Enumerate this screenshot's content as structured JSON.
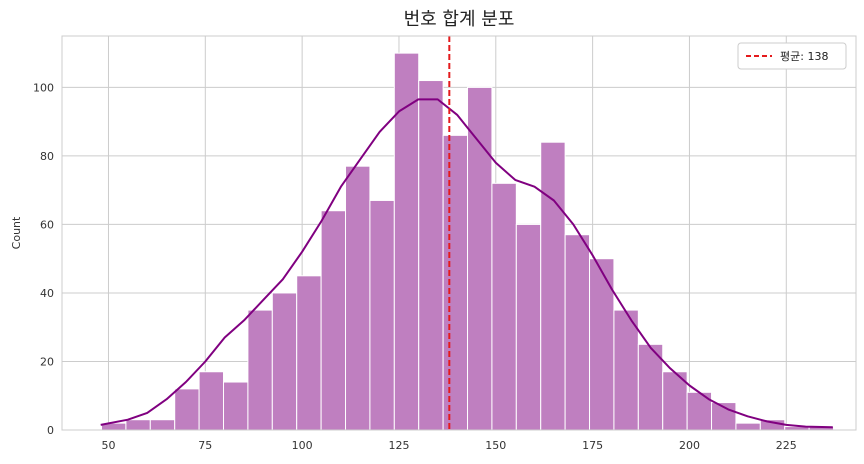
{
  "chart_data": {
    "type": "bar",
    "title": "번호 합계 분포",
    "xlabel": "",
    "ylabel": "Count",
    "xlim": [
      38,
      243
    ],
    "ylim": [
      0,
      115
    ],
    "xticks": [
      50,
      75,
      100,
      125,
      150,
      175,
      200,
      225
    ],
    "yticks": [
      0,
      20,
      40,
      60,
      80,
      100
    ],
    "grid": true,
    "bin_width": 6.3,
    "bins": [
      {
        "left": 48.2,
        "value": 2
      },
      {
        "left": 54.5,
        "value": 3
      },
      {
        "left": 60.8,
        "value": 3
      },
      {
        "left": 67.1,
        "value": 12
      },
      {
        "left": 73.4,
        "value": 17
      },
      {
        "left": 79.7,
        "value": 14
      },
      {
        "left": 86.0,
        "value": 35
      },
      {
        "left": 92.3,
        "value": 40
      },
      {
        "left": 98.6,
        "value": 45
      },
      {
        "left": 104.9,
        "value": 64
      },
      {
        "left": 111.2,
        "value": 77
      },
      {
        "left": 117.5,
        "value": 67
      },
      {
        "left": 123.8,
        "value": 110
      },
      {
        "left": 130.1,
        "value": 102
      },
      {
        "left": 136.4,
        "value": 86
      },
      {
        "left": 142.7,
        "value": 100
      },
      {
        "left": 149.0,
        "value": 72
      },
      {
        "left": 155.3,
        "value": 60
      },
      {
        "left": 161.6,
        "value": 84
      },
      {
        "left": 167.9,
        "value": 57
      },
      {
        "left": 174.2,
        "value": 50
      },
      {
        "left": 180.5,
        "value": 35
      },
      {
        "left": 186.8,
        "value": 25
      },
      {
        "left": 193.1,
        "value": 17
      },
      {
        "left": 199.4,
        "value": 11
      },
      {
        "left": 205.7,
        "value": 8
      },
      {
        "left": 212.0,
        "value": 2
      },
      {
        "left": 218.3,
        "value": 3
      },
      {
        "left": 224.6,
        "value": 1
      },
      {
        "left": 230.9,
        "value": 1
      }
    ],
    "kde": [
      [
        48,
        1.5
      ],
      [
        55,
        3
      ],
      [
        60,
        5
      ],
      [
        65,
        9
      ],
      [
        70,
        14
      ],
      [
        75,
        20
      ],
      [
        80,
        27
      ],
      [
        85,
        32
      ],
      [
        90,
        38
      ],
      [
        95,
        44
      ],
      [
        100,
        52
      ],
      [
        105,
        61
      ],
      [
        110,
        71
      ],
      [
        115,
        79
      ],
      [
        120,
        87
      ],
      [
        125,
        93
      ],
      [
        130,
        96.5
      ],
      [
        135,
        96.5
      ],
      [
        140,
        92
      ],
      [
        145,
        85
      ],
      [
        150,
        78
      ],
      [
        155,
        73
      ],
      [
        160,
        71
      ],
      [
        165,
        67
      ],
      [
        170,
        60
      ],
      [
        175,
        51
      ],
      [
        180,
        41
      ],
      [
        185,
        32
      ],
      [
        190,
        24
      ],
      [
        195,
        18
      ],
      [
        200,
        13
      ],
      [
        205,
        9
      ],
      [
        210,
        6
      ],
      [
        215,
        4
      ],
      [
        220,
        2.5
      ],
      [
        225,
        1.5
      ],
      [
        230,
        1
      ],
      [
        237,
        0.8
      ]
    ],
    "mean": 138,
    "legend": {
      "placement": "top-right",
      "entries": [
        {
          "label": "평균: 138"
        }
      ]
    },
    "colors": {
      "bar_fill": "#bf7fc0",
      "bar_edge": "#ffffff",
      "kde": "#800080",
      "mean_line": "#e41a1c",
      "grid": "#cccccc",
      "axes_edge": "#cccccc"
    }
  }
}
